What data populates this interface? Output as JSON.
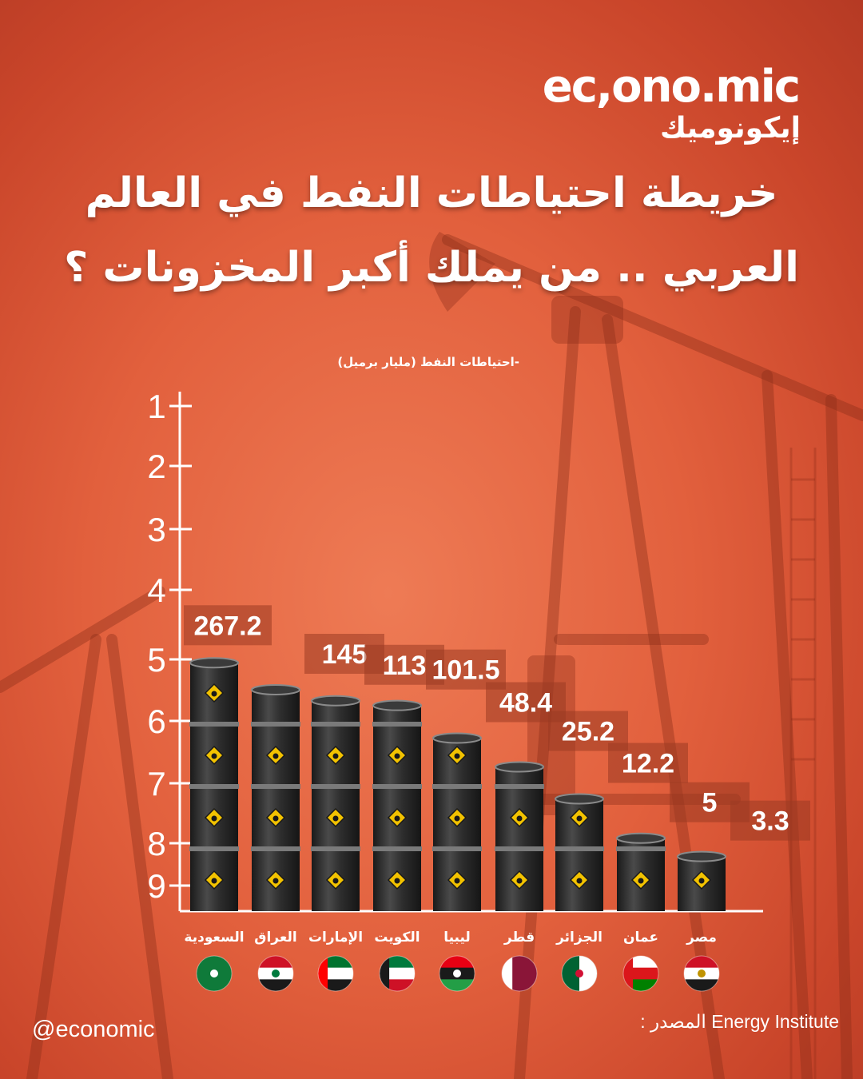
{
  "brand": {
    "latin": "ec,ono.mic",
    "arabic": "إيكونوميك"
  },
  "title": {
    "line1": "خريطة احتياطات النفط في العالم",
    "line2": "العربي .. من يملك أكبر المخزونات ؟"
  },
  "footer": {
    "handle": "@economic",
    "source_label": "المصدر :",
    "source_name": "Energy Institute"
  },
  "colors": {
    "background": "#e2603d",
    "barrel": "#2b2b2b",
    "barrel_rim": "#7a7a7a",
    "diamond": "#f2c200",
    "value_box": "#9a3a22"
  },
  "chart_data": {
    "type": "bar",
    "unit_label": "-احتياطات النفط (مليار برميل)",
    "categories": [
      "السعودية",
      "العراق",
      "الإمارات",
      "الكويت",
      "ليبيا",
      "قطر",
      "الجزائر",
      "عمان",
      "مصر"
    ],
    "values": [
      267.2,
      145,
      113,
      101.5,
      48.4,
      25.2,
      12.2,
      5,
      3.3
    ],
    "value_labels": [
      "267.2",
      "145",
      "113",
      "101.5",
      "48.4",
      "25.2",
      "12.2",
      "5",
      "3.3"
    ],
    "y_ticks": [
      "1",
      "2",
      "3",
      "4",
      "5",
      "6",
      "7",
      "8",
      "9"
    ],
    "flags": [
      "saudi-arabia-flag",
      "iraq-flag",
      "uae-flag",
      "kuwait-flag",
      "libya-flag",
      "qatar-flag",
      "algeria-flag",
      "oman-flag",
      "egypt-flag"
    ],
    "bar_style": "stacked oil barrels",
    "grid": false,
    "legend": "none"
  }
}
